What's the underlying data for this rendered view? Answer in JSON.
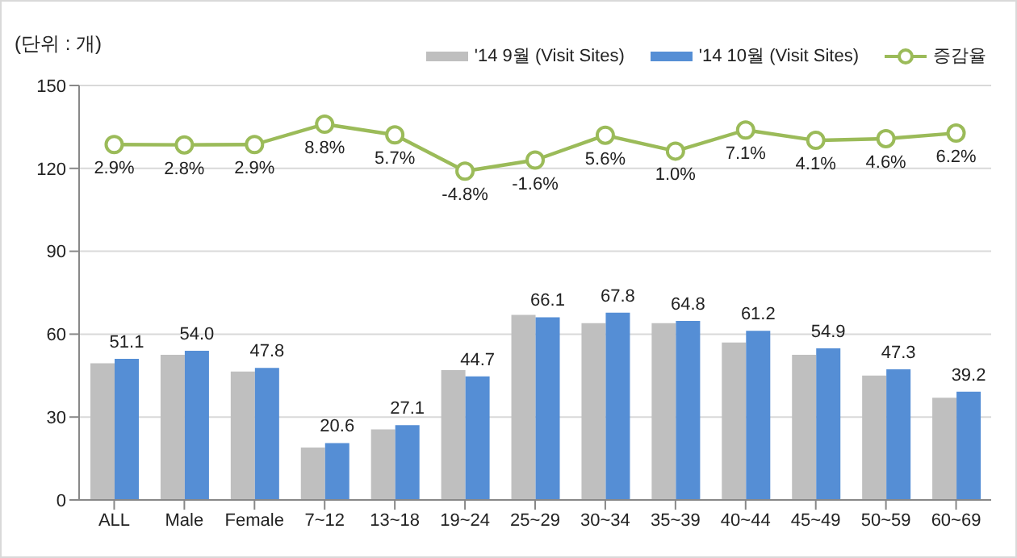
{
  "chart_data": {
    "type": "bar",
    "ylabel": "(단위 : 개)",
    "categories": [
      "ALL",
      "Male",
      "Female",
      "7~12",
      "13~18",
      "19~24",
      "25~29",
      "30~34",
      "35~39",
      "40~44",
      "45~49",
      "50~59",
      "60~69"
    ],
    "series": [
      {
        "name": "'14 9월 (Visit Sites)",
        "color": "#bfbfbf",
        "values": [
          49.5,
          52.5,
          46.5,
          19,
          25.5,
          47,
          67,
          64,
          64,
          57,
          52.5,
          45,
          37
        ]
      },
      {
        "name": "'14 10월 (Visit Sites)",
        "color": "#558ed5",
        "values": [
          51.1,
          54.0,
          47.8,
          20.6,
          27.1,
          44.7,
          66.1,
          67.8,
          64.8,
          61.2,
          54.9,
          47.3,
          39.2
        ],
        "value_labels": [
          "51.1",
          "54.0",
          "47.8",
          "20.6",
          "27.1",
          "44.7",
          "66.1",
          "67.8",
          "64.8",
          "61.2",
          "54.9",
          "47.3",
          "39.2"
        ]
      },
      {
        "name": "증감율",
        "type": "line",
        "axis": "y2",
        "color": "#9bbb59",
        "marker": "circle",
        "values": [
          2.9,
          2.8,
          2.9,
          8.8,
          5.7,
          -4.8,
          -1.6,
          5.6,
          1.0,
          7.1,
          4.1,
          4.6,
          6.2
        ],
        "value_labels": [
          "2.9%",
          "2.8%",
          "2.9%",
          "8.8%",
          "5.7%",
          "-4.8%",
          "-1.6%",
          "5.6%",
          "1.0%",
          "7.1%",
          "4.1%",
          "4.6%",
          "6.2%"
        ]
      }
    ],
    "ylim": [
      0,
      150
    ],
    "yticks": [
      0,
      30,
      60,
      90,
      120,
      150
    ],
    "y2lim": [
      -100,
      20
    ],
    "grid": "y",
    "legend": "top right"
  }
}
